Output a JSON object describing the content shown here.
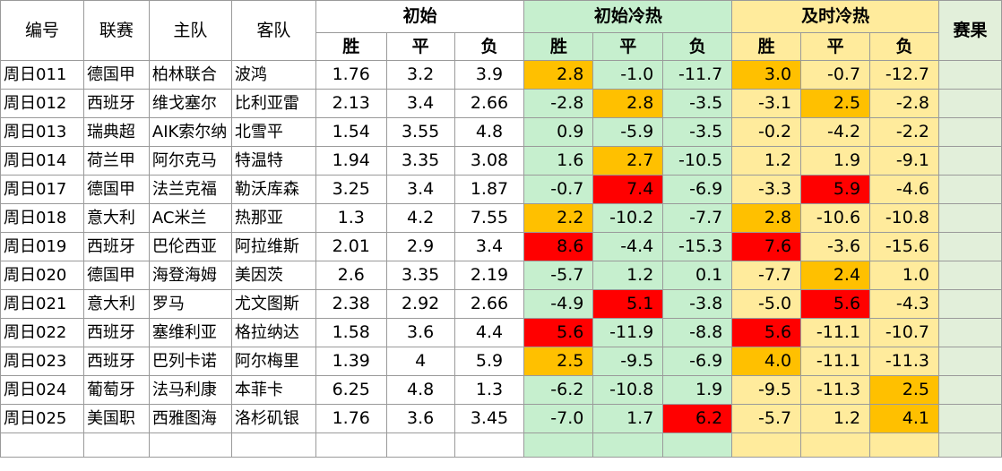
{
  "headers": {
    "id": "编号",
    "league": "联赛",
    "home": "主队",
    "away": "客队",
    "initial": "初始",
    "initial_heat": "初始冷热",
    "live_heat": "及时冷热",
    "result": "赛果",
    "win": "胜",
    "draw": "平",
    "lose": "负"
  },
  "colors": {
    "heat_bg": "#c6efce",
    "live_bg": "#ffeb9c",
    "result_bg": "#e2efda",
    "orange": "#ffc000",
    "red": "#ff0000"
  },
  "rows": [
    {
      "id": "周日011",
      "league": "德国甲",
      "home": "柏林联合",
      "away": "波鸿",
      "o": [
        "1.76",
        "3.2",
        "3.9"
      ],
      "h": [
        "2.8",
        "-1.0",
        "-11.7"
      ],
      "hc": [
        "orange",
        "",
        ""
      ],
      "l": [
        "3.0",
        "-0.7",
        "-12.7"
      ],
      "lc": [
        "orange",
        "",
        ""
      ]
    },
    {
      "id": "周日012",
      "league": "西班牙",
      "home": "维戈塞尔",
      "away": "比利亚雷",
      "o": [
        "2.13",
        "3.4",
        "2.66"
      ],
      "h": [
        "-2.8",
        "2.8",
        "-3.5"
      ],
      "hc": [
        "",
        "orange",
        ""
      ],
      "l": [
        "-3.1",
        "2.5",
        "-2.8"
      ],
      "lc": [
        "",
        "orange",
        ""
      ]
    },
    {
      "id": "周日013",
      "league": "瑞典超",
      "home": "AIK索尔纳",
      "away": "北雪平",
      "o": [
        "1.54",
        "3.55",
        "4.8"
      ],
      "h": [
        "0.9",
        "-5.9",
        "-3.5"
      ],
      "hc": [
        "",
        "",
        ""
      ],
      "l": [
        "-0.2",
        "-4.2",
        "-2.2"
      ],
      "lc": [
        "",
        "",
        ""
      ]
    },
    {
      "id": "周日014",
      "league": "荷兰甲",
      "home": "阿尔克马",
      "away": "特温特",
      "o": [
        "1.94",
        "3.35",
        "3.08"
      ],
      "h": [
        "1.6",
        "2.7",
        "-10.5"
      ],
      "hc": [
        "",
        "orange",
        ""
      ],
      "l": [
        "1.2",
        "1.9",
        "-9.1"
      ],
      "lc": [
        "",
        "",
        ""
      ]
    },
    {
      "id": "周日017",
      "league": "德国甲",
      "home": "法兰克福",
      "away": "勒沃库森",
      "o": [
        "3.25",
        "3.4",
        "1.87"
      ],
      "h": [
        "-0.7",
        "7.4",
        "-6.9"
      ],
      "hc": [
        "",
        "red",
        ""
      ],
      "l": [
        "-3.3",
        "5.9",
        "-4.6"
      ],
      "lc": [
        "",
        "red",
        ""
      ]
    },
    {
      "id": "周日018",
      "league": "意大利",
      "home": "AC米兰",
      "away": "热那亚",
      "o": [
        "1.3",
        "4.2",
        "7.55"
      ],
      "h": [
        "2.2",
        "-10.2",
        "-7.7"
      ],
      "hc": [
        "orange",
        "",
        ""
      ],
      "l": [
        "2.8",
        "-10.6",
        "-10.8"
      ],
      "lc": [
        "orange",
        "",
        ""
      ]
    },
    {
      "id": "周日019",
      "league": "西班牙",
      "home": "巴伦西亚",
      "away": "阿拉维斯",
      "o": [
        "2.01",
        "2.9",
        "3.4"
      ],
      "h": [
        "8.6",
        "-4.4",
        "-15.3"
      ],
      "hc": [
        "red",
        "",
        ""
      ],
      "l": [
        "7.6",
        "-3.6",
        "-15.6"
      ],
      "lc": [
        "red",
        "",
        ""
      ]
    },
    {
      "id": "周日020",
      "league": "德国甲",
      "home": "海登海姆",
      "away": "美因茨",
      "o": [
        "2.6",
        "3.35",
        "2.19"
      ],
      "h": [
        "-5.7",
        "1.2",
        "0.1"
      ],
      "hc": [
        "",
        "",
        ""
      ],
      "l": [
        "-7.7",
        "2.4",
        "1.0"
      ],
      "lc": [
        "",
        "orange",
        ""
      ]
    },
    {
      "id": "周日021",
      "league": "意大利",
      "home": "罗马",
      "away": "尤文图斯",
      "o": [
        "2.38",
        "2.92",
        "2.66"
      ],
      "h": [
        "-4.9",
        "5.1",
        "-3.8"
      ],
      "hc": [
        "",
        "red",
        ""
      ],
      "l": [
        "-5.0",
        "5.6",
        "-4.3"
      ],
      "lc": [
        "",
        "red",
        ""
      ]
    },
    {
      "id": "周日022",
      "league": "西班牙",
      "home": "塞维利亚",
      "away": "格拉纳达",
      "o": [
        "1.58",
        "3.6",
        "4.4"
      ],
      "h": [
        "5.6",
        "-11.9",
        "-8.8"
      ],
      "hc": [
        "red",
        "",
        ""
      ],
      "l": [
        "5.6",
        "-11.1",
        "-10.7"
      ],
      "lc": [
        "red",
        "",
        ""
      ]
    },
    {
      "id": "周日023",
      "league": "西班牙",
      "home": "巴列卡诺",
      "away": "阿尔梅里",
      "o": [
        "1.39",
        "4",
        "5.9"
      ],
      "h": [
        "2.5",
        "-9.5",
        "-6.9"
      ],
      "hc": [
        "orange",
        "",
        ""
      ],
      "l": [
        "4.0",
        "-11.1",
        "-11.3"
      ],
      "lc": [
        "orange",
        "",
        ""
      ]
    },
    {
      "id": "周日024",
      "league": "葡萄牙",
      "home": "法马利康",
      "away": "本菲卡",
      "o": [
        "6.25",
        "4.8",
        "1.3"
      ],
      "h": [
        "-6.2",
        "-10.8",
        "1.9"
      ],
      "hc": [
        "",
        "",
        ""
      ],
      "l": [
        "-9.5",
        "-11.3",
        "2.5"
      ],
      "lc": [
        "",
        "",
        "orange"
      ]
    },
    {
      "id": "周日025",
      "league": "美国职",
      "home": "西雅图海",
      "away": "洛杉矶银",
      "o": [
        "1.76",
        "3.6",
        "3.45"
      ],
      "h": [
        "-7.0",
        "1.7",
        "6.2"
      ],
      "hc": [
        "",
        "",
        "red"
      ],
      "l": [
        "-5.7",
        "1.2",
        "4.1"
      ],
      "lc": [
        "",
        "",
        "orange"
      ]
    }
  ]
}
